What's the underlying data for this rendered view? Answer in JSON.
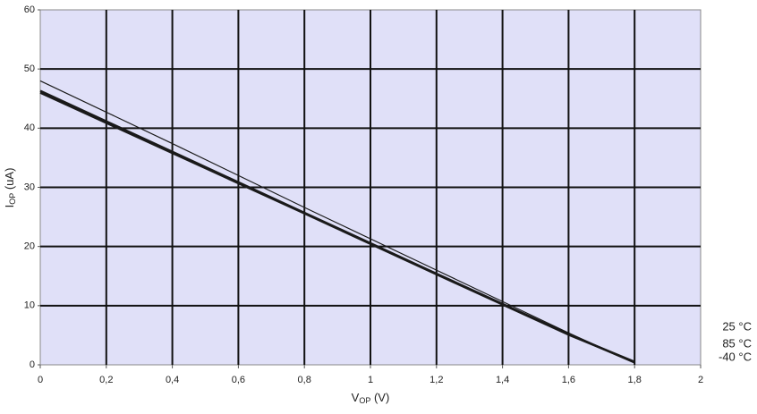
{
  "chart_data": {
    "type": "line",
    "x": [
      0,
      0.4,
      0.8,
      1.2,
      1.6,
      1.8
    ],
    "series": [
      {
        "name": "25 °C",
        "color": "#1a1a1a",
        "width": 1.2,
        "values": [
          48,
          37.4,
          26.6,
          16.0,
          5.4,
          0.3
        ]
      },
      {
        "name": "85 °C",
        "color": "#1a1a1a",
        "width": 2.5,
        "values": [
          46.3,
          36.0,
          25.7,
          15.4,
          5.2,
          0.4
        ]
      },
      {
        "name": "-40 °C",
        "color": "#1a1a1a",
        "width": 2.5,
        "values": [
          46.0,
          35.8,
          25.6,
          15.3,
          5.1,
          0.5
        ]
      }
    ],
    "xlim": [
      0,
      2
    ],
    "xticks": [
      0,
      {
        "value": 0.2,
        "label": "0,2"
      },
      {
        "value": 0.4,
        "label": "0,4"
      },
      {
        "value": 0.6,
        "label": "0,6"
      },
      {
        "value": 0.8,
        "label": "0,8"
      },
      1,
      {
        "value": 1.2,
        "label": "1,2"
      },
      {
        "value": 1.4,
        "label": "1,4"
      },
      {
        "value": 1.6,
        "label": "1,6"
      },
      {
        "value": 1.8,
        "label": "1,8"
      },
      2
    ],
    "ylim": [
      0,
      60
    ],
    "yticks": [
      0,
      10,
      20,
      30,
      40,
      50,
      60
    ],
    "xlabel": {
      "text": "V",
      "sub": "OP",
      "unit": " (V)"
    },
    "ylabel": {
      "text": "I",
      "sub": "OP",
      "unit": " (uA)"
    },
    "grid": true,
    "legend": "right",
    "background": "#e0e0f8"
  }
}
